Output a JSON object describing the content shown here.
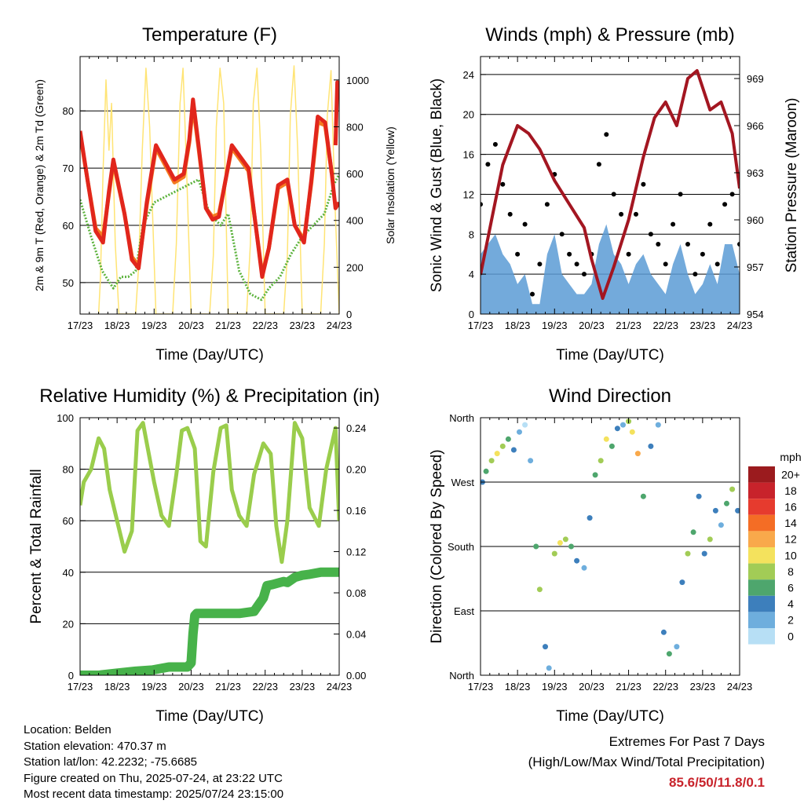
{
  "time_axis": {
    "label": "Time (Day/UTC)",
    "ticks": [
      "17/23",
      "18/23",
      "19/23",
      "20/23",
      "21/23",
      "22/23",
      "23/23",
      "24/23"
    ]
  },
  "colors": {
    "temp2m": "#e1261c",
    "temp9m": "#f47a20",
    "dewpoint": "#5db33e",
    "solar": "#ffe474",
    "gust": "#000000",
    "wind": "#5b9bd5",
    "pressure": "#a31621",
    "rh": "#9acd4c",
    "precip": "#47b24a"
  },
  "chart_data": [
    {
      "id": "temperature",
      "type": "line",
      "title": "Temperature (F)",
      "xlabel": "Time (Day/UTC)",
      "ylabel": "2m & 9m T (Red, Orange) & 2m Td (Green)",
      "ylabel_right": "Solar Insolation (Yellow)",
      "xlim": [
        0,
        7
      ],
      "ylim": [
        44.5,
        89.5
      ],
      "yticks": [
        50,
        60,
        70,
        80
      ],
      "ylim_right": [
        0,
        1100
      ],
      "yticks_right": [
        0,
        200,
        400,
        600,
        800,
        1000
      ],
      "grid": true,
      "series": [
        {
          "key": "temp2m",
          "axis": "left",
          "x": [
            0,
            0.2,
            0.42,
            0.62,
            0.78,
            0.9,
            1.2,
            1.4,
            1.58,
            1.8,
            2.05,
            2.3,
            2.55,
            2.8,
            2.95,
            3.05,
            3.2,
            3.4,
            3.58,
            3.75,
            4.1,
            4.55,
            4.92,
            5.1,
            5.35,
            5.6,
            5.8,
            6.05,
            6.25,
            6.42,
            6.62,
            6.8,
            6.9,
            7.0
          ],
          "y": [
            76.5,
            68,
            59,
            57,
            66,
            71.5,
            62,
            54,
            52.5,
            64,
            74,
            71,
            68,
            69,
            75,
            82,
            74,
            63,
            61,
            61.5,
            74,
            70,
            51,
            56,
            67,
            68,
            60,
            57,
            68,
            79,
            78,
            69,
            63,
            64
          ]
        },
        {
          "key": "temp2m",
          "axis": "left",
          "x": [
            6.9,
            6.95,
            7.0
          ],
          "y": [
            74,
            85,
            83
          ]
        },
        {
          "key": "temp9m",
          "axis": "left",
          "x": [
            0,
            0.2,
            0.42,
            0.62,
            0.78,
            0.9,
            1.2,
            1.4,
            1.58,
            1.8,
            2.05,
            2.3,
            2.55,
            2.8,
            2.95,
            3.05,
            3.2,
            3.4,
            3.58,
            3.75,
            4.1,
            4.55,
            4.92,
            5.1,
            5.35,
            5.6,
            5.8,
            6.05,
            6.25,
            6.42,
            6.62,
            6.8
          ],
          "y": [
            76,
            68,
            59.5,
            58,
            65.5,
            71,
            62,
            54.5,
            53,
            63.5,
            73.5,
            70.5,
            67.5,
            68.5,
            74.5,
            81,
            73.5,
            63,
            61.5,
            62,
            73.5,
            69.5,
            51.5,
            56,
            66.5,
            67.5,
            60,
            57.5,
            67.5,
            78,
            77.5,
            69
          ]
        },
        {
          "key": "dewpoint",
          "axis": "left",
          "x": [
            0,
            0.3,
            0.6,
            0.9,
            1.1,
            1.3,
            1.5,
            1.7,
            2.0,
            2.3,
            2.6,
            2.9,
            3.2,
            3.5,
            3.8,
            4.0,
            4.3,
            4.6,
            4.9,
            5.1,
            5.4,
            5.7,
            6.0,
            6.3,
            6.6,
            6.85,
            7.0
          ],
          "y": [
            64.5,
            58,
            52,
            49,
            51,
            51,
            52,
            60,
            64,
            65,
            66,
            67,
            68,
            62,
            60,
            62,
            52,
            48,
            47,
            49,
            51,
            55,
            58,
            60,
            62,
            67,
            69
          ]
        },
        {
          "key": "solar",
          "axis": "right",
          "x": [
            0.5,
            0.55,
            0.62,
            0.7,
            0.78,
            0.85,
            0.95,
            1.05,
            1.5,
            1.58,
            1.68,
            1.78,
            1.88,
            2.05,
            2.5,
            2.6,
            2.7,
            2.78,
            2.88,
            3.0,
            3.5,
            3.6,
            3.68,
            3.78,
            3.88,
            4.0,
            4.5,
            4.6,
            4.68,
            4.78,
            4.88,
            5.0,
            5.5,
            5.6,
            5.68,
            5.78,
            5.88,
            6.0,
            6.5,
            6.6,
            6.68,
            6.78,
            6.88,
            7.0
          ],
          "y": [
            0,
            150,
            600,
            1000,
            700,
            900,
            300,
            0,
            0,
            200,
            700,
            1050,
            800,
            0,
            0,
            300,
            900,
            1050,
            600,
            0,
            0,
            250,
            800,
            1050,
            900,
            0,
            0,
            300,
            900,
            1050,
            700,
            0,
            0,
            250,
            850,
            1060,
            700,
            0,
            0,
            300,
            850,
            1040,
            500,
            0
          ]
        }
      ]
    },
    {
      "id": "winds",
      "type": "scatter",
      "title": "Winds (mph) & Pressure (mb)",
      "xlabel": "Time (Day/UTC)",
      "ylabel": "Sonic Wind & Gust (Blue, Black)",
      "ylabel_right": "Station Pressure (Maroon)",
      "xlim": [
        0,
        7
      ],
      "ylim": [
        0,
        25.8
      ],
      "yticks": [
        0,
        4,
        8,
        12,
        16,
        20,
        24
      ],
      "ylim_right": [
        954,
        970.4
      ],
      "yticks_right": [
        954,
        957,
        960,
        963,
        966,
        969
      ],
      "grid": true,
      "series": [
        {
          "key": "gust",
          "name": "Gust",
          "x": [
            0,
            0.2,
            0.4,
            0.6,
            0.8,
            1.0,
            1.2,
            1.4,
            1.6,
            1.8,
            2.0,
            2.2,
            2.4,
            2.6,
            2.8,
            3.0,
            3.2,
            3.4,
            3.6,
            3.8,
            4.0,
            4.2,
            4.4,
            4.6,
            4.8,
            5.0,
            5.2,
            5.4,
            5.6,
            5.8,
            6.0,
            6.2,
            6.4,
            6.6,
            6.8,
            7.0
          ],
          "y": [
            11,
            15,
            17,
            13,
            10,
            6,
            9,
            2,
            5,
            11,
            14,
            8,
            6,
            5,
            4,
            6,
            15,
            18,
            12,
            10,
            6,
            10,
            13,
            8,
            7,
            5,
            9,
            12,
            7,
            4,
            6,
            9,
            5,
            11,
            12,
            7
          ]
        },
        {
          "key": "wind",
          "name": "Wind",
          "x": [
            0,
            0.2,
            0.4,
            0.6,
            0.8,
            1.0,
            1.2,
            1.4,
            1.6,
            1.8,
            2.0,
            2.2,
            2.4,
            2.6,
            2.8,
            3.0,
            3.2,
            3.4,
            3.6,
            3.8,
            4.0,
            4.2,
            4.4,
            4.6,
            4.8,
            5.0,
            5.2,
            5.4,
            5.6,
            5.8,
            6.0,
            6.2,
            6.4,
            6.6,
            6.8,
            7.0
          ],
          "y": [
            6,
            7,
            8,
            6,
            5,
            3,
            4,
            1,
            1,
            6,
            8,
            4,
            3,
            2,
            2,
            3,
            7,
            9,
            6,
            5,
            3,
            5,
            6,
            4,
            3,
            2,
            5,
            7,
            4,
            2,
            3,
            5,
            3,
            7,
            7,
            4
          ]
        },
        {
          "key": "pressure",
          "name": "Pressure",
          "axis": "right",
          "type": "line",
          "x": [
            0,
            0.3,
            0.6,
            1.0,
            1.3,
            1.6,
            2.0,
            2.4,
            2.8,
            3.0,
            3.3,
            3.6,
            4.0,
            4.4,
            4.7,
            5.0,
            5.3,
            5.6,
            5.85,
            6.2,
            6.5,
            6.8,
            7.0
          ],
          "y": [
            956.5,
            960,
            963.5,
            966,
            965.5,
            964.5,
            962.5,
            961,
            959.5,
            957.5,
            955,
            957,
            960,
            964,
            966.5,
            967.5,
            966,
            969,
            969.5,
            967,
            967.5,
            965.5,
            962
          ]
        }
      ]
    },
    {
      "id": "humidity",
      "type": "line",
      "title": "Relative Humidity (%) & Precipitation (in)",
      "xlabel": "Time (Day/UTC)",
      "ylabel": "Percent & Total Rainfall",
      "xlim": [
        0,
        7
      ],
      "ylim": [
        0,
        100
      ],
      "yticks": [
        0,
        20,
        40,
        60,
        80,
        100
      ],
      "ylim_right": [
        0,
        0.25
      ],
      "yticks_right": [
        0.0,
        0.04,
        0.08,
        0.12,
        0.16,
        0.2,
        0.24
      ],
      "grid": true,
      "series": [
        {
          "key": "rh",
          "name": "Relative Humidity",
          "x": [
            0,
            0.1,
            0.3,
            0.5,
            0.65,
            0.8,
            1.0,
            1.2,
            1.4,
            1.55,
            1.7,
            2.0,
            2.2,
            2.4,
            2.6,
            2.75,
            2.9,
            3.1,
            3.25,
            3.4,
            3.6,
            3.8,
            3.95,
            4.1,
            4.3,
            4.5,
            4.7,
            4.95,
            5.15,
            5.3,
            5.45,
            5.6,
            5.8,
            6.0,
            6.2,
            6.45,
            6.65,
            6.9,
            7.0
          ],
          "y": [
            66,
            75,
            80,
            92,
            88,
            72,
            60,
            48,
            56,
            95,
            98,
            75,
            62,
            58,
            78,
            95,
            96,
            88,
            52,
            50,
            79,
            96,
            97,
            72,
            62,
            58,
            78,
            90,
            86,
            58,
            44,
            60,
            98,
            92,
            65,
            58,
            80,
            96,
            60
          ]
        },
        {
          "key": "precip",
          "name": "Total Rainfall",
          "axis": "right",
          "x": [
            0,
            0.5,
            1.0,
            1.5,
            1.95,
            2.4,
            2.9,
            3.0,
            3.05,
            3.1,
            3.15,
            3.5,
            3.9,
            4.3,
            4.7,
            4.95,
            5.05,
            5.2,
            5.4,
            5.5,
            5.6,
            5.8,
            6.0,
            6.2,
            6.5,
            6.8,
            7.0
          ],
          "y": [
            0,
            0,
            0.002,
            0.004,
            0.005,
            0.008,
            0.008,
            0.012,
            0.04,
            0.058,
            0.06,
            0.06,
            0.06,
            0.06,
            0.062,
            0.075,
            0.087,
            0.088,
            0.09,
            0.091,
            0.09,
            0.095,
            0.097,
            0.098,
            0.1,
            0.1,
            0.1
          ]
        }
      ]
    },
    {
      "id": "wind_direction",
      "type": "scatter",
      "title": "Wind Direction",
      "xlabel": "Time (Day/UTC)",
      "ylabel": "Direction (Colored By Speed)",
      "xlim": [
        0,
        7
      ],
      "ylim": [
        0,
        360
      ],
      "ytick_values": [
        0,
        90,
        180,
        270,
        360
      ],
      "ytick_labels": [
        "North",
        "East",
        "South",
        "West",
        "North"
      ],
      "grid": true,
      "colorbar": {
        "title": "mph",
        "labels": [
          "20+",
          "18",
          "16",
          "14",
          "12",
          "10",
          "8",
          "6",
          "4",
          "2",
          "0"
        ],
        "colors": [
          "#9b1b1e",
          "#c8232b",
          "#e63b2e",
          "#f46d25",
          "#f9a94b",
          "#f4e25d",
          "#a2cc56",
          "#4ea66d",
          "#3d7fbc",
          "#6eaedd",
          "#b7dff5"
        ]
      },
      "series": [
        {
          "name": "Direction",
          "x": [
            0.05,
            0.15,
            0.3,
            0.45,
            0.6,
            0.75,
            0.9,
            1.05,
            1.2,
            1.35,
            1.5,
            1.6,
            1.75,
            1.85,
            2.0,
            2.15,
            2.3,
            2.45,
            2.6,
            2.8,
            2.95,
            3.1,
            3.25,
            3.4,
            3.55,
            3.7,
            3.85,
            4.0,
            4.1,
            4.25,
            4.4,
            4.6,
            4.8,
            4.95,
            5.1,
            5.3,
            5.45,
            5.6,
            5.75,
            5.9,
            6.05,
            6.2,
            6.35,
            6.5,
            6.65,
            6.8,
            6.95
          ],
          "y": [
            270,
            285,
            300,
            310,
            320,
            330,
            315,
            340,
            350,
            300,
            180,
            120,
            40,
            10,
            170,
            185,
            190,
            180,
            160,
            150,
            220,
            280,
            300,
            330,
            320,
            345,
            350,
            355,
            340,
            310,
            250,
            320,
            350,
            60,
            30,
            40,
            130,
            170,
            200,
            250,
            170,
            190,
            230,
            210,
            240,
            260,
            230
          ],
          "speed": [
            4,
            6,
            8,
            10,
            8,
            6,
            4,
            2,
            0,
            2,
            6,
            8,
            4,
            2,
            8,
            10,
            8,
            6,
            4,
            2,
            4,
            6,
            8,
            10,
            6,
            4,
            2,
            8,
            10,
            12,
            6,
            4,
            2,
            4,
            6,
            2,
            4,
            8,
            6,
            4,
            4,
            8,
            4,
            2,
            6,
            8,
            4
          ]
        }
      ]
    }
  ],
  "info": {
    "location": "Location: Belden",
    "elevation": "Station elevation: 470.37 m",
    "latlon": "Station lat/lon: 42.2232; -75.6685",
    "created": "Figure created on Thu, 2025-07-24, at 23:22 UTC",
    "recent": "Most recent data timestamp: 2025/07/24 23:15:00"
  },
  "extremes": {
    "title": "Extremes For Past 7 Days",
    "subtitle": "(High/Low/Max Wind/Total Precipitation)",
    "values": "85.6/50/11.8/0.1"
  }
}
